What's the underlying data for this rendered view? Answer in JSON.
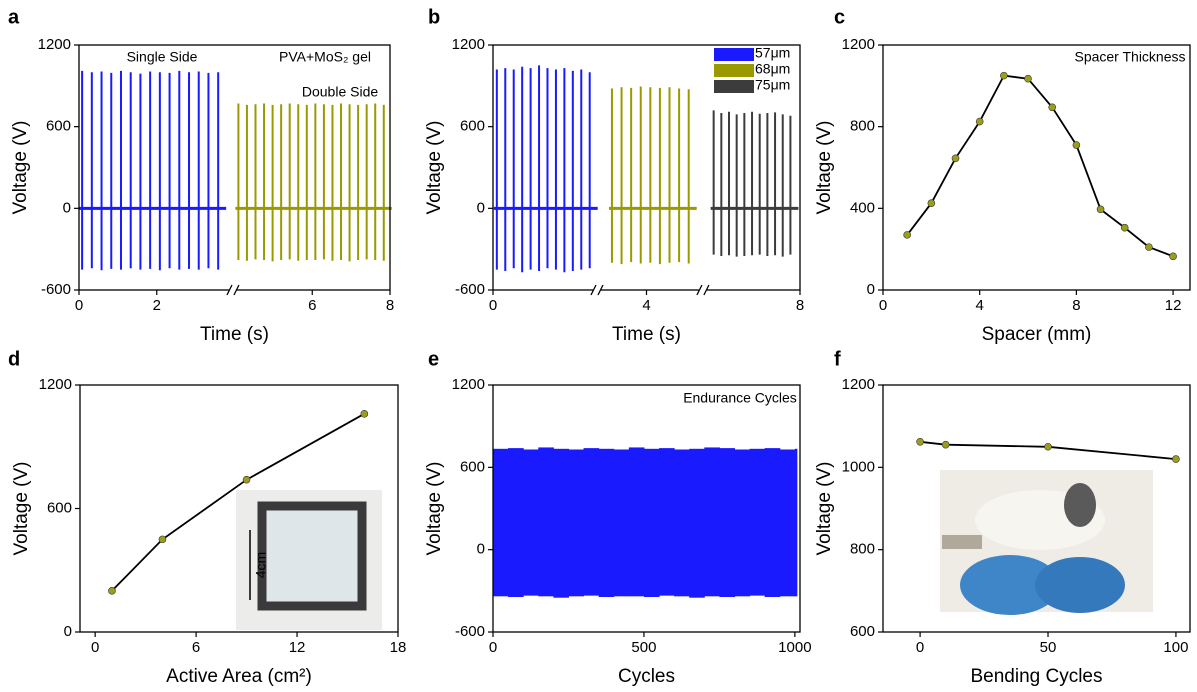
{
  "chart_data": [
    {
      "type": "spike",
      "panel": "a",
      "xlabel": "Time (s)",
      "ylabel": "Voltage (V)",
      "annotations": [
        "Single Side",
        "PVA+MoS₂ gel",
        "Double Side"
      ],
      "xlim": [
        0,
        8
      ],
      "xticks": [
        0,
        2,
        6,
        8
      ],
      "x_breaks": [
        3.96
      ],
      "ylim": [
        -600,
        1200
      ],
      "yticks": [
        -600,
        0,
        600,
        1200
      ],
      "series": [
        {
          "color": "#1a1aff",
          "x": [
            0.08,
            0.33,
            0.58,
            0.83,
            1.08,
            1.33,
            1.58,
            1.83,
            2.08,
            2.33,
            2.58,
            2.83,
            3.08,
            3.33,
            3.58
          ],
          "values": [
            1010,
            1000,
            1005,
            995,
            1010,
            1000,
            990,
            1005,
            1000,
            995,
            1010,
            1000,
            1005,
            995,
            1000
          ],
          "lows": [
            -450,
            -440,
            -455,
            -445,
            -450,
            -440,
            -450,
            -445,
            -455,
            -440,
            -450,
            -445,
            -450,
            -440,
            -450
          ]
        },
        {
          "color": "#9a9a00",
          "x": [
            4.1,
            4.32,
            4.54,
            4.76,
            4.98,
            5.2,
            5.42,
            5.64,
            5.86,
            6.08,
            6.3,
            6.52,
            6.74,
            6.96,
            7.18,
            7.4,
            7.62,
            7.84
          ],
          "values": [
            770,
            760,
            765,
            770,
            760,
            765,
            770,
            765,
            760,
            770,
            765,
            760,
            770,
            765,
            760,
            765,
            770,
            760
          ],
          "lows": [
            -380,
            -385,
            -375,
            -380,
            -390,
            -380,
            -375,
            -385,
            -380,
            -380,
            -375,
            -385,
            -380,
            -390,
            -380,
            -375,
            -380,
            -385
          ]
        }
      ]
    },
    {
      "type": "spike",
      "panel": "b",
      "xlabel": "Time (s)",
      "ylabel": "Voltage (V)",
      "xlim": [
        0,
        8
      ],
      "xticks": [
        0,
        4,
        8
      ],
      "x_breaks": [
        2.71,
        5.47
      ],
      "ylim": [
        -600,
        1200
      ],
      "yticks": [
        -600,
        0,
        600,
        1200
      ],
      "legend": "upper right",
      "series": [
        {
          "name": "57μm",
          "color": "#1a1aff",
          "x": [
            0.1,
            0.32,
            0.54,
            0.76,
            0.98,
            1.2,
            1.42,
            1.64,
            1.86,
            2.08,
            2.3,
            2.52
          ],
          "values": [
            1020,
            1030,
            1020,
            1040,
            1030,
            1050,
            1030,
            1020,
            1030,
            1010,
            1020,
            1000
          ],
          "lows": [
            -450,
            -460,
            -440,
            -470,
            -450,
            -460,
            -440,
            -450,
            -470,
            -460,
            -450,
            -440
          ]
        },
        {
          "name": "68μm",
          "color": "#9a9a00",
          "x": [
            3.1,
            3.35,
            3.6,
            3.85,
            4.1,
            4.35,
            4.6,
            4.85,
            5.1
          ],
          "values": [
            880,
            890,
            885,
            895,
            890,
            885,
            890,
            880,
            875
          ],
          "lows": [
            -400,
            -410,
            -395,
            -405,
            -400,
            -410,
            -400,
            -395,
            -405
          ]
        },
        {
          "name": "75μm",
          "color": "#3c3c3c",
          "x": [
            5.75,
            5.95,
            6.15,
            6.35,
            6.55,
            6.75,
            6.95,
            7.15,
            7.35,
            7.55,
            7.75
          ],
          "values": [
            720,
            700,
            710,
            690,
            700,
            710,
            695,
            700,
            705,
            690,
            680
          ],
          "lows": [
            -340,
            -350,
            -345,
            -355,
            -350,
            -345,
            -340,
            -350,
            -345,
            -355,
            -340
          ]
        }
      ]
    },
    {
      "type": "line",
      "panel": "c",
      "xlabel": "Spacer (mm)",
      "ylabel": "Voltage (V)",
      "annotations": [
        "Spacer Thickness"
      ],
      "xlim": [
        0,
        12.7
      ],
      "xticks": [
        0,
        4,
        8,
        12
      ],
      "ylim": [
        0,
        1200
      ],
      "yticks": [
        0,
        400,
        800,
        1200
      ],
      "series": [
        {
          "color": "#000000",
          "marker_color": "#9c9c1e",
          "x": [
            1,
            2,
            3,
            4,
            5,
            6,
            7,
            8,
            9,
            10,
            11,
            12
          ],
          "values": [
            270,
            425,
            645,
            825,
            1050,
            1035,
            895,
            710,
            395,
            305,
            210,
            165
          ]
        }
      ]
    },
    {
      "type": "line",
      "panel": "d",
      "xlabel": "Active Area (cm²)",
      "ylabel": "Voltage (V)",
      "inset_label": "4cm",
      "xlim": [
        -0.9,
        18
      ],
      "xticks": [
        0,
        6,
        12,
        18
      ],
      "ylim": [
        0,
        1200
      ],
      "yticks": [
        0,
        600,
        1200
      ],
      "series": [
        {
          "color": "#000000",
          "marker_color": "#9c9c1e",
          "x": [
            1,
            4,
            9,
            16
          ],
          "values": [
            200,
            450,
            740,
            1060
          ]
        }
      ]
    },
    {
      "type": "band",
      "panel": "e",
      "xlabel": "Cycles",
      "ylabel": "Voltage (V)",
      "annotations": [
        "Endurance Cycles"
      ],
      "xlim": [
        0,
        1017
      ],
      "xticks": [
        0,
        500,
        1000
      ],
      "ylim": [
        -600,
        1200
      ],
      "yticks": [
        -600,
        0,
        600,
        1200
      ],
      "series": [
        {
          "color": "#1a1aff",
          "x": [
            0,
            50,
            100,
            150,
            200,
            250,
            300,
            350,
            400,
            450,
            500,
            550,
            600,
            650,
            700,
            750,
            800,
            850,
            900,
            950,
            1000
          ],
          "values": [
            735,
            740,
            730,
            745,
            735,
            730,
            740,
            735,
            730,
            745,
            735,
            740,
            730,
            735,
            745,
            740,
            730,
            735,
            740,
            730,
            735
          ],
          "lows": [
            -340,
            -345,
            -335,
            -340,
            -350,
            -340,
            -335,
            -345,
            -340,
            -340,
            -345,
            -335,
            -340,
            -350,
            -340,
            -345,
            -340,
            -335,
            -345,
            -340,
            -340
          ]
        }
      ]
    },
    {
      "type": "line",
      "panel": "f",
      "xlabel": "Bending Cycles",
      "ylabel": "Voltage (V)",
      "xlim": [
        -14.5,
        105.5
      ],
      "xticks": [
        0,
        50,
        100
      ],
      "ylim": [
        600,
        1200
      ],
      "yticks": [
        600,
        800,
        1000,
        1200
      ],
      "series": [
        {
          "color": "#000000",
          "marker_color": "#9c9c1e",
          "x": [
            0,
            10,
            50,
            100
          ],
          "values": [
            1062,
            1055,
            1050,
            1020
          ]
        }
      ]
    }
  ]
}
